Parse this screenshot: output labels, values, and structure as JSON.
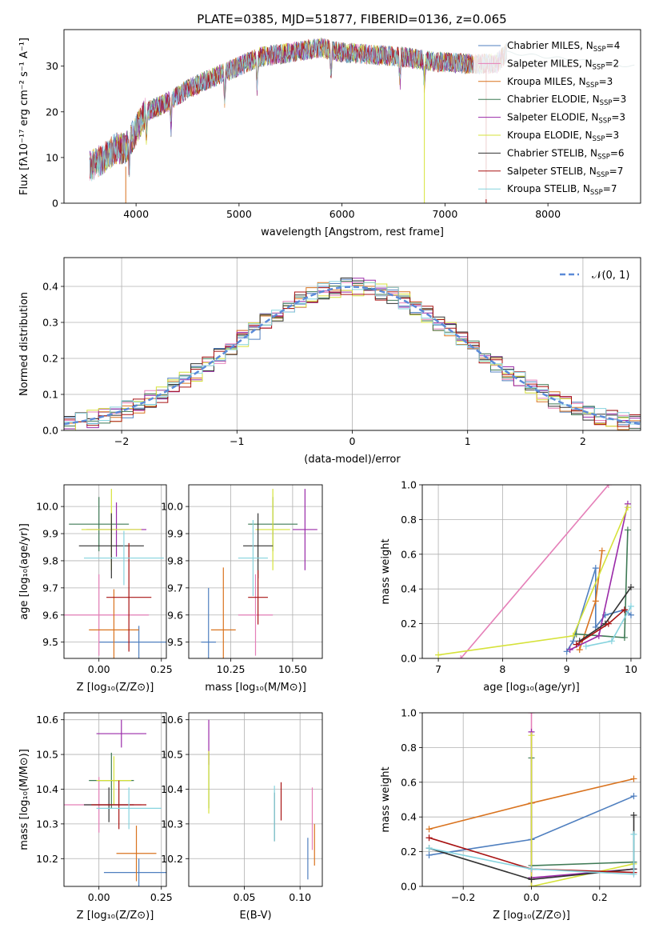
{
  "title": "PLATE=0385, MJD=51877, FIBERID=0136, z=0.065",
  "colors": {
    "Chabrier MILES": "#4f7fbf",
    "Salpeter MILES": "#e57fb8",
    "Kroupa MILES": "#d9731f",
    "Chabrier ELODIE": "#3f7a55",
    "Salpeter ELODIE": "#9a2aa8",
    "Kroupa ELODIE": "#d6e23a",
    "Chabrier STELIB": "#333333",
    "Salpeter STELIB": "#a81212",
    "Kroupa STELIB": "#86d3de"
  },
  "chart_data": [
    {
      "id": "spectrum",
      "type": "line",
      "title": "PLATE=0385, MJD=51877, FIBERID=0136, z=0.065",
      "xlabel": "wavelength [Angstrom, rest frame]",
      "ylabel": "Flux [fλ10⁻¹⁷ erg cm⁻² s⁻¹ A⁻¹]",
      "xlim": [
        3300,
        8900
      ],
      "ylim": [
        0,
        38
      ],
      "xticks": [
        4000,
        5000,
        6000,
        7000,
        8000
      ],
      "yticks": [
        0,
        10,
        20,
        30
      ],
      "legend_position": "right",
      "legend": [
        {
          "name": "Chabrier MILES",
          "nssp": 4
        },
        {
          "name": "Salpeter MILES",
          "nssp": 2
        },
        {
          "name": "Kroupa MILES",
          "nssp": 3
        },
        {
          "name": "Chabrier ELODIE",
          "nssp": 3
        },
        {
          "name": "Salpeter ELODIE",
          "nssp": 3
        },
        {
          "name": "Kroupa ELODIE",
          "nssp": 3
        },
        {
          "name": "Chabrier STELIB",
          "nssp": 6
        },
        {
          "name": "Salpeter STELIB",
          "nssp": 7
        },
        {
          "name": "Kroupa STELIB",
          "nssp": 7
        }
      ],
      "continuum": {
        "x": [
          3550,
          3700,
          3800,
          3900,
          4000,
          4100,
          4300,
          4500,
          4800,
          5000,
          5200,
          5500,
          5800,
          6000,
          6300,
          6600,
          6900,
          7200,
          7500,
          7600,
          8000,
          8400,
          8800
        ],
        "y": [
          8,
          10,
          12,
          12,
          16,
          20,
          22,
          25,
          28,
          30,
          32,
          33,
          34,
          33,
          32.5,
          32,
          31,
          30.5,
          30.5,
          33,
          32,
          31,
          30
        ]
      },
      "absorption_lines": [
        3934,
        4102,
        4340,
        4861,
        5175,
        5893,
        6563,
        6800,
        7400
      ]
    },
    {
      "id": "residuals",
      "type": "line",
      "xlabel": "(data-model)/error",
      "ylabel": "Normed distribution",
      "xlim": [
        -2.5,
        2.5
      ],
      "ylim": [
        0,
        0.48
      ],
      "xticks": [
        -2,
        -1,
        0,
        1,
        2
      ],
      "yticks": [
        0.0,
        0.1,
        0.2,
        0.3,
        0.4
      ],
      "grid": true,
      "legend_position": "top-right",
      "reference": {
        "label": "𝒩(0, 1)",
        "style": "dashed",
        "color": "#5b8ad8"
      },
      "series_names": [
        "Chabrier MILES",
        "Salpeter MILES",
        "Kroupa MILES",
        "Chabrier ELODIE",
        "Salpeter ELODIE",
        "Kroupa ELODIE",
        "Chabrier STELIB",
        "Salpeter STELIB",
        "Kroupa STELIB"
      ]
    },
    {
      "id": "z-age",
      "type": "scatter",
      "xlabel": "Z [log₁₀(Z/Z⊙)]",
      "ylabel": "age  [log₁₀(age/yr)]",
      "xlim": [
        -0.14,
        0.27
      ],
      "ylim": [
        9.44,
        10.08
      ],
      "xticks": [
        0.0,
        0.25
      ],
      "yticks": [
        9.5,
        9.6,
        9.7,
        9.8,
        9.9,
        10.0
      ],
      "grid": true,
      "points": [
        {
          "series": "Chabrier MILES",
          "x": 0.16,
          "y": 9.5,
          "xerr": 0.16,
          "yerr": 0.06
        },
        {
          "series": "Salpeter MILES",
          "x": 0.0,
          "y": 9.6,
          "xerr": 0.2,
          "yerr": 0.15
        },
        {
          "series": "Kroupa MILES",
          "x": 0.06,
          "y": 9.545,
          "xerr": 0.1,
          "yerr": 0.15
        },
        {
          "series": "Chabrier ELODIE",
          "x": 0.0,
          "y": 9.935,
          "xerr": 0.12,
          "yerr": 0.1
        },
        {
          "series": "Salpeter ELODIE",
          "x": 0.07,
          "y": 9.915,
          "xerr": 0.12,
          "yerr": 0.1
        },
        {
          "series": "Kroupa ELODIE",
          "x": 0.05,
          "y": 9.915,
          "xerr": 0.12,
          "yerr": 0.15
        },
        {
          "series": "Chabrier STELIB",
          "x": 0.05,
          "y": 9.855,
          "xerr": 0.13,
          "yerr": 0.12
        },
        {
          "series": "Salpeter STELIB",
          "x": 0.12,
          "y": 9.665,
          "xerr": 0.09,
          "yerr": 0.2
        },
        {
          "series": "Kroupa STELIB",
          "x": 0.1,
          "y": 9.81,
          "xerr": 0.16,
          "yerr": 0.1
        }
      ]
    },
    {
      "id": "mass-age",
      "type": "scatter",
      "xlabel": "mass [log₁₀(M/M⊙)]",
      "ylabel": "",
      "xlim": [
        10.08,
        10.62
      ],
      "ylim": [
        9.44,
        10.08
      ],
      "xticks": [
        10.25,
        10.5
      ],
      "yticks": [
        9.5,
        9.6,
        9.7,
        9.8,
        9.9,
        10.0
      ],
      "grid": true,
      "points": [
        {
          "series": "Chabrier MILES",
          "x": 10.16,
          "y": 9.5,
          "xerr": 0.03,
          "yerr": 0.2
        },
        {
          "series": "Salpeter MILES",
          "x": 10.35,
          "y": 9.6,
          "xerr": 0.07,
          "yerr": 0.15
        },
        {
          "series": "Kroupa MILES",
          "x": 10.22,
          "y": 9.545,
          "xerr": 0.05,
          "yerr": 0.23
        },
        {
          "series": "Chabrier ELODIE",
          "x": 10.42,
          "y": 9.935,
          "xerr": 0.1,
          "yerr": 0.1
        },
        {
          "series": "Salpeter ELODIE",
          "x": 10.55,
          "y": 9.915,
          "xerr": 0.05,
          "yerr": 0.15
        },
        {
          "series": "Kroupa ELODIE",
          "x": 10.42,
          "y": 9.915,
          "xerr": 0.07,
          "yerr": 0.15
        },
        {
          "series": "Chabrier STELIB",
          "x": 10.36,
          "y": 9.855,
          "xerr": 0.06,
          "yerr": 0.12
        },
        {
          "series": "Salpeter STELIB",
          "x": 10.36,
          "y": 9.665,
          "xerr": 0.04,
          "yerr": 0.1
        },
        {
          "series": "Kroupa STELIB",
          "x": 10.34,
          "y": 9.81,
          "xerr": 0.06,
          "yerr": 0.14
        }
      ]
    },
    {
      "id": "age-weight",
      "type": "line",
      "xlabel": "age  [log₁₀(age/yr)]",
      "ylabel": "mass weight",
      "xlim": [
        6.75,
        10.15
      ],
      "ylim": [
        0,
        1.0
      ],
      "xticks": [
        7,
        8,
        9,
        10
      ],
      "yticks": [
        0.0,
        0.2,
        0.4,
        0.6,
        0.8,
        1.0
      ],
      "grid": true,
      "series": [
        {
          "name": "Chabrier MILES",
          "x": [
            9.0,
            9.1,
            9.45,
            9.45,
            9.6,
            9.9,
            10.0
          ],
          "y": [
            0.04,
            0.1,
            0.52,
            0.18,
            0.25,
            0.28,
            0.25
          ]
        },
        {
          "name": "Salpeter MILES",
          "x": [
            7.35,
            9.65
          ],
          "y": [
            0.0,
            1.0
          ]
        },
        {
          "name": "Kroupa MILES",
          "x": [
            9.2,
            9.45,
            9.55
          ],
          "y": [
            0.05,
            0.33,
            0.62
          ]
        },
        {
          "name": "Chabrier ELODIE",
          "x": [
            9.15,
            9.9,
            9.95
          ],
          "y": [
            0.14,
            0.12,
            0.74
          ]
        },
        {
          "name": "Salpeter ELODIE",
          "x": [
            9.05,
            9.5,
            9.95
          ],
          "y": [
            0.05,
            0.13,
            0.89
          ]
        },
        {
          "name": "Kroupa ELODIE",
          "x": [
            7.0,
            9.1,
            9.95
          ],
          "y": [
            0.02,
            0.13,
            0.87
          ]
        },
        {
          "name": "Chabrier STELIB",
          "x": [
            9.2,
            9.6,
            10.0
          ],
          "y": [
            0.1,
            0.2,
            0.41
          ]
        },
        {
          "name": "Salpeter STELIB",
          "x": [
            9.15,
            9.65,
            9.9
          ],
          "y": [
            0.08,
            0.2,
            0.28
          ]
        },
        {
          "name": "Kroupa STELIB",
          "x": [
            9.3,
            9.7,
            10.0
          ],
          "y": [
            0.07,
            0.1,
            0.3
          ]
        }
      ]
    },
    {
      "id": "z-mass",
      "type": "scatter",
      "xlabel": "Z [log₁₀(Z/Z⊙)]",
      "ylabel": "mass [log₁₀(M/M⊙)]",
      "xlim": [
        -0.14,
        0.27
      ],
      "ylim": [
        10.12,
        10.62
      ],
      "xticks": [
        0.0,
        0.25
      ],
      "yticks": [
        10.2,
        10.3,
        10.4,
        10.5,
        10.6
      ],
      "grid": true,
      "points": [
        {
          "series": "Chabrier MILES",
          "x": 0.16,
          "y": 10.16,
          "xerr": 0.14,
          "yerr": 0.04
        },
        {
          "series": "Salpeter MILES",
          "x": 0.0,
          "y": 10.355,
          "xerr": 0.17,
          "yerr": 0.08
        },
        {
          "series": "Kroupa MILES",
          "x": 0.15,
          "y": 10.215,
          "xerr": 0.08,
          "yerr": 0.08
        },
        {
          "series": "Chabrier ELODIE",
          "x": 0.05,
          "y": 10.425,
          "xerr": 0.09,
          "yerr": 0.08
        },
        {
          "series": "Salpeter ELODIE",
          "x": 0.09,
          "y": 10.56,
          "xerr": 0.1,
          "yerr": 0.04
        },
        {
          "series": "Kroupa ELODIE",
          "x": 0.06,
          "y": 10.425,
          "xerr": 0.07,
          "yerr": 0.07
        },
        {
          "series": "Chabrier STELIB",
          "x": 0.04,
          "y": 10.355,
          "xerr": 0.1,
          "yerr": 0.05
        },
        {
          "series": "Salpeter STELIB",
          "x": 0.08,
          "y": 10.355,
          "xerr": 0.11,
          "yerr": 0.07
        },
        {
          "series": "Kroupa STELIB",
          "x": 0.12,
          "y": 10.345,
          "xerr": 0.13,
          "yerr": 0.06
        }
      ]
    },
    {
      "id": "ebv-mass",
      "type": "scatter",
      "xlabel": "E(B-V)",
      "ylabel": "",
      "xlim": [
        0.0,
        0.12
      ],
      "ylim": [
        10.12,
        10.62
      ],
      "xticks": [
        0.05,
        0.1
      ],
      "yticks": [
        10.2,
        10.3,
        10.4,
        10.5,
        10.6
      ],
      "grid": true,
      "points": [
        {
          "series": "Chabrier MILES",
          "x": 0.107,
          "y": 10.2,
          "yerr": 0.06
        },
        {
          "series": "Salpeter MILES",
          "x": 0.111,
          "y": 10.315,
          "yerr": 0.09
        },
        {
          "series": "Kroupa MILES",
          "x": 0.113,
          "y": 10.24,
          "yerr": 0.06
        },
        {
          "series": "Chabrier ELODIE",
          "x": 0.018,
          "y": 10.425,
          "yerr": 0.08
        },
        {
          "series": "Salpeter ELODIE",
          "x": 0.018,
          "y": 10.535,
          "yerr": 0.065
        },
        {
          "series": "Kroupa ELODIE",
          "x": 0.018,
          "y": 10.42,
          "yerr": 0.09
        },
        {
          "series": "Chabrier STELIB",
          "x": 0.077,
          "y": 10.32,
          "yerr": 0.07
        },
        {
          "series": "Salpeter STELIB",
          "x": 0.083,
          "y": 10.365,
          "yerr": 0.055
        },
        {
          "series": "Kroupa STELIB",
          "x": 0.077,
          "y": 10.33,
          "yerr": 0.08
        }
      ]
    },
    {
      "id": "z-weight",
      "type": "line",
      "xlabel": "Z [log₁₀(Z/Z⊙)]",
      "ylabel": "mass weight",
      "xlim": [
        -0.32,
        0.32
      ],
      "ylim": [
        0,
        1.0
      ],
      "xticks": [
        -0.2,
        0.0,
        0.2
      ],
      "yticks": [
        0.0,
        0.2,
        0.4,
        0.6,
        0.8,
        1.0
      ],
      "grid": true,
      "series": [
        {
          "name": "Chabrier MILES",
          "x": [
            -0.3,
            0.0,
            0.3
          ],
          "y": [
            0.18,
            0.27,
            0.52
          ]
        },
        {
          "name": "Salpeter MILES",
          "x": [
            0.0,
            0.0
          ],
          "y": [
            0.0,
            1.0
          ]
        },
        {
          "name": "Kroupa MILES",
          "x": [
            -0.3,
            0.0,
            0.3
          ],
          "y": [
            0.33,
            0.48,
            0.62
          ]
        },
        {
          "name": "Chabrier ELODIE",
          "x": [
            0.0,
            0.0,
            0.3
          ],
          "y": [
            0.74,
            0.12,
            0.14
          ]
        },
        {
          "name": "Salpeter ELODIE",
          "x": [
            0.0,
            0.0,
            0.3
          ],
          "y": [
            0.89,
            0.05,
            0.1
          ]
        },
        {
          "name": "Kroupa ELODIE",
          "x": [
            0.0,
            0.0,
            0.3
          ],
          "y": [
            0.87,
            0.0,
            0.13
          ]
        },
        {
          "name": "Chabrier STELIB",
          "x": [
            -0.3,
            0.0,
            0.3,
            0.3
          ],
          "y": [
            0.22,
            0.04,
            0.1,
            0.41
          ]
        },
        {
          "name": "Salpeter STELIB",
          "x": [
            -0.3,
            0.0,
            0.3
          ],
          "y": [
            0.28,
            0.1,
            0.08
          ]
        },
        {
          "name": "Kroupa STELIB",
          "x": [
            -0.3,
            0.0,
            0.3,
            0.3
          ],
          "y": [
            0.22,
            0.1,
            0.07,
            0.3
          ]
        }
      ]
    }
  ]
}
